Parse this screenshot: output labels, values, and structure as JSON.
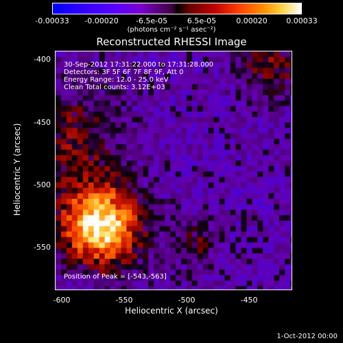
{
  "colorbar": {
    "tick_labels": [
      "-0.00033",
      "-0.00020",
      "-6.5e-05",
      "6.5e-05",
      "0.00020",
      "0.00033"
    ],
    "units_label": "(photons cm⁻² s⁻¹ asec⁻²)"
  },
  "title": "Reconstructed RHESSI Image",
  "info": {
    "time_range": "30-Sep-2012 17:31:22.000 to 17:31:28.000",
    "detectors": "Detectors: 3F 5F 6F 7F 8F 9F, Att 0",
    "energy_range": "Energy Range: 12.0 - 25.0 keV",
    "clean_counts": "Clean     Total counts: 3.12E+03",
    "peak": "Position of Peak = [-543,-563]"
  },
  "x_axis": {
    "label": "Heliocentric X (arcsec)",
    "ticks": [
      "-600",
      "-550",
      "-500",
      "-450"
    ]
  },
  "y_axis": {
    "label": "Heliocentric Y (arcsec)",
    "ticks": [
      "-400",
      "-450",
      "-500",
      "-550"
    ]
  },
  "footer": "1-Oct-2012 00:00"
}
